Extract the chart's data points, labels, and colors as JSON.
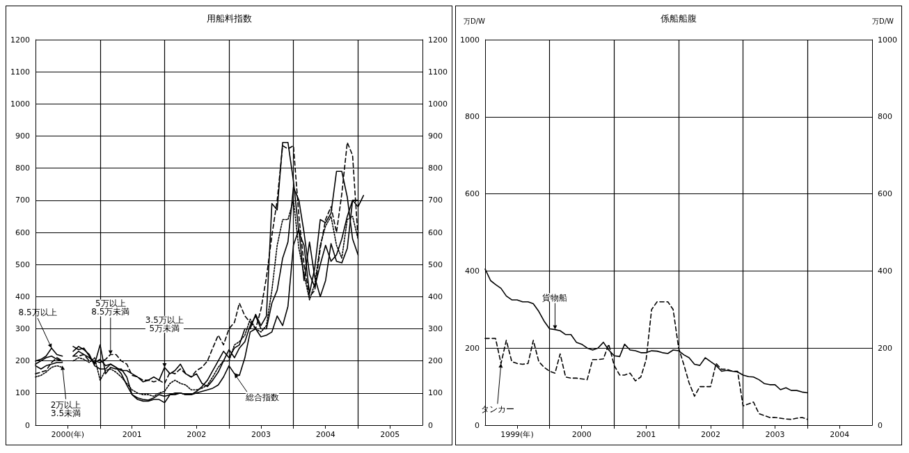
{
  "chart_data": [
    {
      "type": "line",
      "title": "用船料指数",
      "x": [
        "2000-01",
        "2000-02",
        "2000-03",
        "2000-04",
        "2000-05",
        "2000-06",
        "2000-07",
        "2000-08",
        "2000-09",
        "2000-10",
        "2000-11",
        "2000-12",
        "2001-01",
        "2001-02",
        "2001-03",
        "2001-04",
        "2001-05",
        "2001-06",
        "2001-07",
        "2001-08",
        "2001-09",
        "2001-10",
        "2001-11",
        "2001-12",
        "2002-01",
        "2002-02",
        "2002-03",
        "2002-04",
        "2002-05",
        "2002-06",
        "2002-07",
        "2002-08",
        "2002-09",
        "2002-10",
        "2002-11",
        "2002-12",
        "2003-01",
        "2003-02",
        "2003-03",
        "2003-04",
        "2003-05",
        "2003-06",
        "2003-07",
        "2003-08",
        "2003-09",
        "2003-10",
        "2003-11",
        "2003-12",
        "2004-01",
        "2004-02",
        "2004-03",
        "2004-04",
        "2004-05",
        "2004-06",
        "2004-07",
        "2004-08",
        "2004-09",
        "2004-10",
        "2004-11",
        "2004-12",
        "2005-01",
        "2005-02"
      ],
      "series": [
        {
          "color": "#000000",
          "line_style": "solid",
          "values": [
            185,
            175,
            185,
            190,
            195,
            195,
            null,
            215,
            230,
            220,
            210,
            195,
            205,
            185,
            190,
            180,
            160,
            125,
            95,
            85,
            80,
            78,
            85,
            95,
            90,
            95,
            100,
            100,
            95,
            95,
            100,
            105,
            110,
            115,
            125,
            150,
            185,
            160,
            155,
            210,
            290,
            300,
            275,
            280,
            290,
            340,
            310,
            370,
            560,
            610,
            450,
            570,
            460,
            400,
            450,
            565,
            510,
            505,
            550,
            700,
            680,
            715
          ]
        },
        {
          "color": "#000000",
          "line_style": "solid",
          "values": [
            200,
            205,
            215,
            240,
            220,
            215,
            null,
            245,
            235,
            240,
            215,
            190,
            250,
            160,
            180,
            175,
            175,
            150,
            95,
            80,
            75,
            75,
            80,
            80,
            70,
            95,
            95,
            100,
            95,
            95,
            105,
            120,
            140,
            170,
            200,
            230,
            210,
            240,
            250,
            300,
            300,
            345,
            310,
            340,
            690,
            670,
            880,
            880,
            760,
            600,
            560,
            410,
            490,
            640,
            630,
            660,
            790,
            790,
            710,
            580,
            530,
            null
          ]
        },
        {
          "color": "#000000",
          "line_style": "dashed",
          "values": [
            160,
            165,
            170,
            195,
            210,
            200,
            null,
            215,
            215,
            220,
            200,
            200,
            195,
            205,
            220,
            220,
            200,
            190,
            155,
            150,
            140,
            140,
            135,
            140,
            130,
            165,
            160,
            175,
            160,
            150,
            170,
            180,
            200,
            240,
            280,
            250,
            300,
            320,
            380,
            340,
            320,
            300,
            360,
            460,
            590,
            700,
            870,
            860,
            870,
            650,
            500,
            400,
            420,
            550,
            640,
            680,
            600,
            720,
            880,
            840,
            580,
            null
          ]
        },
        {
          "color": "#000000",
          "line_style": "solid",
          "values": [
            190,
            200,
            210,
            215,
            205,
            200,
            null,
            230,
            245,
            235,
            220,
            185,
            175,
            175,
            190,
            180,
            170,
            170,
            160,
            150,
            135,
            140,
            150,
            140,
            180,
            160,
            170,
            190,
            160,
            150,
            160,
            130,
            120,
            140,
            165,
            200,
            235,
            210,
            240,
            260,
            310,
            340,
            300,
            300,
            380,
            420,
            520,
            570,
            740,
            700,
            600,
            470,
            430,
            500,
            560,
            510,
            530,
            580,
            650,
            700,
            700,
            null
          ]
        },
        {
          "color": "#000000",
          "line_style": "dotted",
          "values": [
            150,
            155,
            165,
            180,
            185,
            180,
            null,
            200,
            210,
            205,
            195,
            210,
            140,
            170,
            175,
            165,
            150,
            130,
            110,
            100,
            95,
            95,
            90,
            100,
            105,
            130,
            140,
            130,
            125,
            110,
            110,
            115,
            125,
            150,
            180,
            200,
            200,
            250,
            260,
            280,
            330,
            300,
            290,
            310,
            420,
            560,
            640,
            640,
            700,
            550,
            470,
            390,
            440,
            560,
            620,
            650,
            560,
            520,
            640,
            650,
            580,
            null
          ]
        }
      ],
      "xlim": [
        "2000-01",
        "2006-01"
      ],
      "xticks": [
        {
          "value": "2000-07",
          "label": "2000(年)"
        },
        {
          "value": "2001-01",
          "label": null
        },
        {
          "value": "2001-07",
          "label": "2001"
        },
        {
          "value": "2002-01",
          "label": null
        },
        {
          "value": "2002-07",
          "label": "2002"
        },
        {
          "value": "2003-01",
          "label": null
        },
        {
          "value": "2003-07",
          "label": "2003"
        },
        {
          "value": "2004-01",
          "label": null
        },
        {
          "value": "2004-07",
          "label": "2004"
        },
        {
          "value": "2005-01",
          "label": null
        },
        {
          "value": "2005-07",
          "label": "2005"
        }
      ],
      "ylim": [
        0,
        1200
      ],
      "yticks": [
        0,
        100,
        200,
        300,
        400,
        500,
        600,
        700,
        800,
        900,
        1000,
        1100,
        1200
      ],
      "y2lim": [
        0,
        1200
      ],
      "y2ticks": [
        0,
        100,
        200,
        300,
        400,
        500,
        600,
        700,
        800,
        900,
        1000,
        1100,
        1200
      ],
      "grid": true,
      "marker": "none",
      "annotations": [
        {
          "text": "8.5万以上",
          "x": "2000-04",
          "y": 240
        },
        {
          "text": "5万以上\n8.5万未満",
          "x": "2001-03",
          "y": 220
        },
        {
          "text": "3.5万以上\n5万未満",
          "x": "2002-01",
          "y": 180
        },
        {
          "text": "2万以上\n3.5未満",
          "x": "2000-06",
          "y": 185
        },
        {
          "text": "総合指数",
          "x": "2003-02",
          "y": 160
        }
      ]
    },
    {
      "type": "line",
      "title": "係船船腹",
      "ylabel": "万D/W",
      "y2label": "万D/W",
      "x": [
        "1999-01",
        "1999-02",
        "1999-03",
        "1999-04",
        "1999-05",
        "1999-06",
        "1999-07",
        "1999-08",
        "1999-09",
        "1999-10",
        "1999-11",
        "1999-12",
        "2000-01",
        "2000-02",
        "2000-03",
        "2000-04",
        "2000-05",
        "2000-06",
        "2000-07",
        "2000-08",
        "2000-09",
        "2000-10",
        "2000-11",
        "2000-12",
        "2001-01",
        "2001-02",
        "2001-03",
        "2001-04",
        "2001-05",
        "2001-06",
        "2001-07",
        "2001-08",
        "2001-09",
        "2001-10",
        "2001-11",
        "2001-12",
        "2002-01",
        "2002-02",
        "2002-03",
        "2002-04",
        "2002-05",
        "2002-06",
        "2002-07",
        "2002-08",
        "2002-09",
        "2002-10",
        "2002-11",
        "2002-12",
        "2003-01",
        "2003-02",
        "2003-03",
        "2003-04",
        "2003-05",
        "2003-06",
        "2003-07",
        "2003-08",
        "2003-09",
        "2003-10",
        "2003-11",
        "2003-12",
        "2004-01"
      ],
      "series": [
        {
          "color": "#000000",
          "line_style": "solid",
          "values": [
            405,
            375,
            365,
            355,
            335,
            325,
            325,
            320,
            320,
            315,
            295,
            270,
            250,
            248,
            245,
            235,
            235,
            215,
            210,
            200,
            195,
            200,
            215,
            195,
            180,
            178,
            210,
            195,
            193,
            188,
            188,
            193,
            192,
            188,
            186,
            195,
            193,
            182,
            175,
            158,
            155,
            175,
            165,
            155,
            140,
            142,
            140,
            138,
            130,
            126,
            125,
            118,
            108,
            105,
            105,
            92,
            97,
            90,
            90,
            86,
            84
          ]
        },
        {
          "color": "#000000",
          "line_style": "dashed",
          "values": [
            225,
            225,
            225,
            160,
            220,
            165,
            160,
            158,
            160,
            220,
            165,
            150,
            140,
            135,
            185,
            125,
            122,
            122,
            120,
            118,
            170,
            170,
            172,
            210,
            155,
            130,
            130,
            135,
            115,
            125,
            170,
            300,
            320,
            320,
            320,
            300,
            200,
            155,
            110,
            75,
            100,
            100,
            100,
            160,
            145,
            145,
            140,
            140,
            50,
            55,
            60,
            30,
            25,
            20,
            20,
            18,
            16,
            15,
            18,
            20,
            15
          ]
        }
      ],
      "xlim": [
        "1999-01",
        "2005-01"
      ],
      "xticks": [
        {
          "value": "1999-07",
          "label": "1999(年)"
        },
        {
          "value": "2000-01",
          "label": null
        },
        {
          "value": "2000-07",
          "label": "2000"
        },
        {
          "value": "2001-01",
          "label": null
        },
        {
          "value": "2001-07",
          "label": "2001"
        },
        {
          "value": "2002-01",
          "label": null
        },
        {
          "value": "2002-07",
          "label": "2002"
        },
        {
          "value": "2003-01",
          "label": null
        },
        {
          "value": "2003-07",
          "label": "2003"
        },
        {
          "value": "2004-01",
          "label": null
        },
        {
          "value": "2004-07",
          "label": "2004"
        }
      ],
      "ylim": [
        0,
        1000
      ],
      "yticks": [
        0,
        200,
        400,
        600,
        800,
        1000
      ],
      "y2lim": [
        0,
        1000
      ],
      "y2ticks": [
        0,
        200,
        400,
        600,
        800,
        1000
      ],
      "grid": true,
      "marker": "none",
      "annotations": [
        {
          "text": "貨物船",
          "x": "2000-02",
          "y": 248
        },
        {
          "text": "タンカー",
          "x": "1999-04",
          "y": 160
        }
      ]
    }
  ]
}
